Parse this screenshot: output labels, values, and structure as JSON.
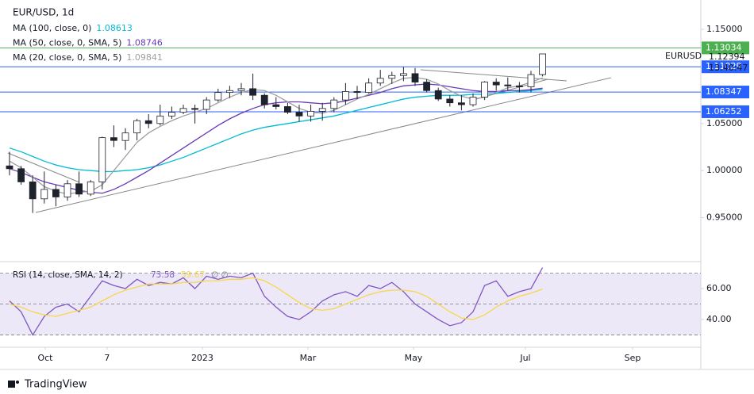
{
  "chart_data": [
    {
      "type": "candlestick",
      "title": "EUR/USD, 1d",
      "symbol": "EURUSD",
      "countdown": "13:40:47",
      "categories": [
        null,
        null,
        null,
        null,
        null,
        null,
        null,
        null,
        null,
        null,
        null,
        null,
        null,
        null,
        null,
        null,
        null,
        null,
        null,
        null,
        null,
        null,
        null,
        null,
        null,
        null,
        null,
        null,
        null,
        null,
        null,
        null,
        null,
        null,
        null,
        null,
        null,
        null,
        null,
        null,
        null,
        null,
        null,
        null,
        null,
        null,
        null
      ],
      "open": [
        1.005,
        1.002,
        0.988,
        0.97,
        0.98,
        0.972,
        0.986,
        0.975,
        0.988,
        1.035,
        1.032,
        1.04,
        1.053,
        1.05,
        1.058,
        1.062,
        1.066,
        1.065,
        1.075,
        1.083,
        1.085,
        1.087,
        1.08,
        1.07,
        1.068,
        1.062,
        1.058,
        1.063,
        1.066,
        1.075,
        1.084,
        1.083,
        1.093,
        1.098,
        1.101,
        1.103,
        1.094,
        1.085,
        1.076,
        1.072,
        1.07,
        1.078,
        1.094,
        1.091,
        1.09,
        1.089,
        1.102
      ],
      "high": [
        1.02,
        1.005,
        0.995,
        0.999,
        0.985,
        0.99,
        0.999,
        0.99,
        1.036,
        1.048,
        1.045,
        1.055,
        1.06,
        1.07,
        1.068,
        1.07,
        1.07,
        1.078,
        1.087,
        1.09,
        1.093,
        1.103,
        1.082,
        1.078,
        1.072,
        1.07,
        1.07,
        1.072,
        1.078,
        1.093,
        1.09,
        1.098,
        1.107,
        1.105,
        1.11,
        1.109,
        1.097,
        1.088,
        1.08,
        1.08,
        1.082,
        1.095,
        1.098,
        1.099,
        1.094,
        1.106,
        1.124
      ],
      "low": [
        0.995,
        0.985,
        0.955,
        0.965,
        0.962,
        0.968,
        0.972,
        0.973,
        0.98,
        1.025,
        1.022,
        1.032,
        1.045,
        1.048,
        1.055,
        1.06,
        1.05,
        1.06,
        1.073,
        1.077,
        1.08,
        1.075,
        1.066,
        1.065,
        1.06,
        1.052,
        1.052,
        1.053,
        1.062,
        1.07,
        1.076,
        1.082,
        1.09,
        1.092,
        1.095,
        1.09,
        1.083,
        1.074,
        1.068,
        1.064,
        1.068,
        1.075,
        1.085,
        1.085,
        1.083,
        1.083,
        1.1
      ],
      "close": [
        1.002,
        0.988,
        0.97,
        0.98,
        0.972,
        0.986,
        0.975,
        0.988,
        1.035,
        1.032,
        1.04,
        1.053,
        1.05,
        1.058,
        1.062,
        1.066,
        1.065,
        1.075,
        1.083,
        1.085,
        1.087,
        1.08,
        1.07,
        1.068,
        1.062,
        1.058,
        1.063,
        1.066,
        1.075,
        1.084,
        1.083,
        1.093,
        1.098,
        1.101,
        1.103,
        1.094,
        1.085,
        1.076,
        1.072,
        1.07,
        1.078,
        1.094,
        1.091,
        1.09,
        1.089,
        1.102,
        1.12394
      ],
      "candle_colors": {
        "up": "#ffffff",
        "down": "#1e222d",
        "wick": "#1e222d"
      },
      "series": [
        {
          "name": "MA (100, close, 0)",
          "color": "#00bcd4",
          "values": [
            1.024,
            1.02,
            1.015,
            1.01,
            1.006,
            1.003,
            1.001,
            1.0,
            0.999,
            0.999,
            1.0,
            1.001,
            1.003,
            1.006,
            1.01,
            1.014,
            1.019,
            1.024,
            1.029,
            1.034,
            1.039,
            1.043,
            1.046,
            1.048,
            1.05,
            1.052,
            1.054,
            1.056,
            1.058,
            1.061,
            1.064,
            1.067,
            1.07,
            1.073,
            1.076,
            1.078,
            1.079,
            1.08,
            1.08,
            1.08,
            1.081,
            1.081,
            1.082,
            1.083,
            1.084,
            1.085,
            1.08613
          ]
        },
        {
          "name": "MA (50, close, 0, SMA, 5)",
          "color": "#673ab7",
          "values": [
            1.002,
            0.998,
            0.993,
            0.988,
            0.985,
            0.982,
            0.979,
            0.977,
            0.976,
            0.98,
            0.986,
            0.993,
            1.0,
            1.008,
            1.016,
            1.024,
            1.032,
            1.04,
            1.048,
            1.055,
            1.061,
            1.066,
            1.07,
            1.072,
            1.073,
            1.073,
            1.072,
            1.071,
            1.072,
            1.074,
            1.077,
            1.08,
            1.083,
            1.087,
            1.09,
            1.091,
            1.092,
            1.091,
            1.089,
            1.087,
            1.085,
            1.084,
            1.084,
            1.085,
            1.085,
            1.086,
            1.08746
          ]
        },
        {
          "name": "MA (20, close, 0, SMA, 5)",
          "color": "#9e9e9e",
          "values": [
            1.01,
            1.003,
            0.993,
            0.983,
            0.978,
            0.975,
            0.977,
            0.978,
            0.985,
            1.0,
            1.015,
            1.03,
            1.04,
            1.047,
            1.053,
            1.058,
            1.062,
            1.066,
            1.072,
            1.078,
            1.083,
            1.086,
            1.085,
            1.08,
            1.073,
            1.066,
            1.062,
            1.061,
            1.064,
            1.07,
            1.076,
            1.081,
            1.087,
            1.093,
            1.098,
            1.099,
            1.097,
            1.092,
            1.085,
            1.079,
            1.076,
            1.078,
            1.083,
            1.088,
            1.09,
            1.094,
            1.09841
          ]
        }
      ],
      "levels": [
        1.13034,
        1.11029,
        1.08347,
        1.06252
      ],
      "level_colors": [
        "#4caf50",
        "#2962ff",
        "#2962ff",
        "#2962ff"
      ],
      "ylim": [
        0.905,
        1.177
      ],
      "yticks": [
        {
          "value": 1.15,
          "label": "1.15000"
        },
        {
          "value": 1.05,
          "label": "1.05000"
        },
        {
          "value": 1.0,
          "label": "1.00000"
        },
        {
          "value": 0.95,
          "label": "0.95000"
        }
      ],
      "xticks": [
        {
          "value": 3.08,
          "label": "Oct"
        },
        {
          "value": 8.42,
          "label": "7"
        },
        {
          "value": 16.64,
          "label": "2023"
        },
        {
          "value": 25.75,
          "label": "Mar"
        },
        {
          "value": 34.86,
          "label": "May"
        },
        {
          "value": 44.52,
          "label": "Jul"
        },
        {
          "value": 53.77,
          "label": "Sep"
        }
      ]
    },
    {
      "type": "line",
      "title": "RSI (14, close, SMA, 14, 2)",
      "na_label": "∅ ∅",
      "series": [
        {
          "color": "#7e57c2",
          "values": [
            52,
            45,
            30,
            42,
            48,
            50,
            45,
            55,
            65,
            62,
            60,
            66,
            62,
            64,
            63,
            67,
            60,
            68,
            66,
            68,
            67,
            70,
            55,
            48,
            42,
            40,
            45,
            52,
            56,
            58,
            55,
            62,
            60,
            64,
            58,
            50,
            45,
            40,
            36,
            38,
            45,
            62,
            65,
            55,
            58,
            60,
            73.58
          ]
        },
        {
          "color": "#f7d74a",
          "values": [
            50,
            48,
            45,
            43,
            42,
            44,
            46,
            48,
            52,
            56,
            59,
            61,
            63,
            63,
            63,
            64,
            64,
            65,
            65,
            66,
            66,
            67,
            65,
            61,
            56,
            51,
            47,
            46,
            47,
            50,
            53,
            56,
            58,
            59,
            59,
            58,
            55,
            50,
            45,
            41,
            40,
            43,
            48,
            52,
            55,
            57,
            59.67
          ]
        }
      ],
      "band": [
        70,
        30
      ],
      "band_color": "#ede8f7",
      "levels": [
        70,
        50,
        30
      ],
      "ylim": [
        22.6,
        75.9
      ],
      "yticks": [
        {
          "value": 60,
          "label": "60.00"
        },
        {
          "value": 40,
          "label": "40.00"
        }
      ]
    }
  ],
  "footer": {
    "brand": "TradingView"
  }
}
